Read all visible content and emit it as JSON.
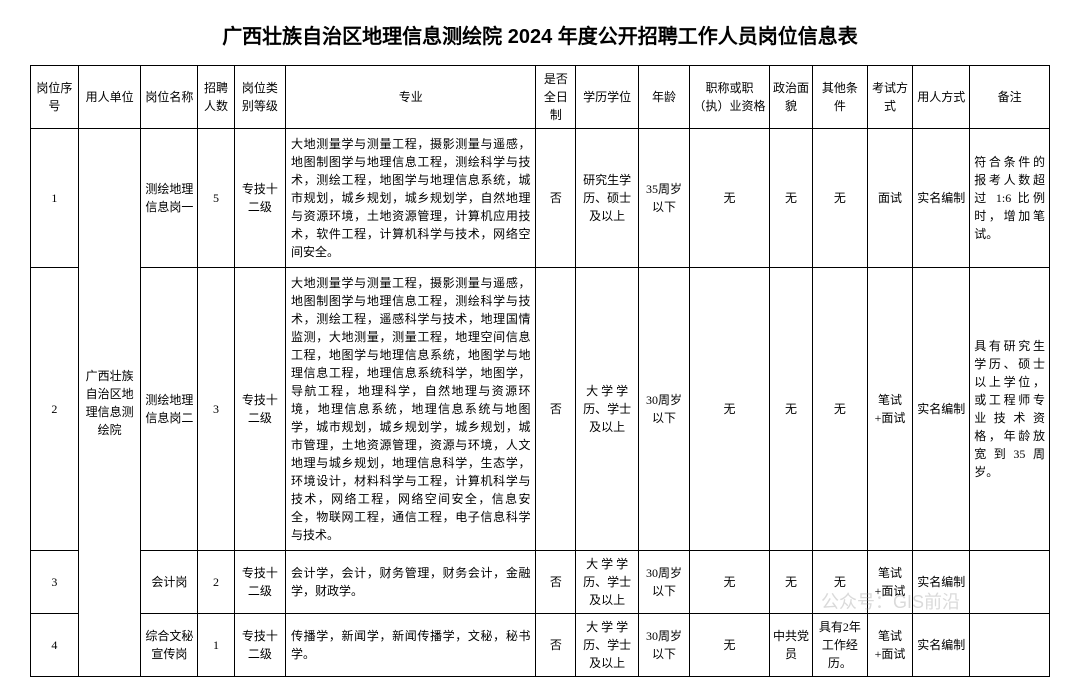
{
  "title": "广西壮族自治区地理信息测绘院 2024 年度公开招聘工作人员岗位信息表",
  "headers": {
    "seq": "岗位序号",
    "unit": "用人单位",
    "position": "岗位名称",
    "count": "招聘人数",
    "level": "岗位类别等级",
    "major": "专业",
    "fulltime": "是否全日制",
    "education": "学历学位",
    "age": "年龄",
    "cert": "职称或职（执）业资格",
    "politics": "政治面貌",
    "other": "其他条件",
    "exam": "考试方式",
    "employ": "用人方式",
    "note": "备注"
  },
  "unit": "广西壮族自治区地理信息测绘院",
  "rows": [
    {
      "seq": "1",
      "position": "测绘地理信息岗一",
      "count": "5",
      "level": "专技十二级",
      "major": "大地测量学与测量工程，摄影测量与遥感，地图制图学与地理信息工程，测绘科学与技术，测绘工程，地图学与地理信息系统，城市规划，城乡规划，城乡规划学，自然地理与资源环境，土地资源管理，计算机应用技术，软件工程，计算机科学与技术，网络空间安全。",
      "fulltime": "否",
      "education": "研究生学历、硕士及以上",
      "age": "35周岁以下",
      "cert": "无",
      "politics": "无",
      "other": "无",
      "exam": "面试",
      "employ": "实名编制",
      "note": "符合条件的报考人数超过 1:6 比例时，增加笔试。"
    },
    {
      "seq": "2",
      "position": "测绘地理信息岗二",
      "count": "3",
      "level": "专技十二级",
      "major": "大地测量学与测量工程，摄影测量与遥感，地图制图学与地理信息工程，测绘科学与技术，测绘工程，遥感科学与技术，地理国情监测，大地测量，测量工程，地理空间信息工程，地图学与地理信息系统，地图学与地理信息工程，地理信息系统科学，地图学，导航工程，地理科学，自然地理与资源环境，地理信息系统，地理信息系统与地图学，城市规划，城乡规划学，城乡规划，城市管理，土地资源管理，资源与环境，人文地理与城乡规划，地理信息科学，生态学，环境设计，材料科学与工程，计算机科学与技术，网络工程，网络空间安全，信息安全，物联网工程，通信工程，电子信息科学与技术。",
      "fulltime": "否",
      "education": "大 学 学历、学士及以上",
      "age": "30周岁以下",
      "cert": "无",
      "politics": "无",
      "other": "无",
      "exam": "笔试+面试",
      "employ": "实名编制",
      "note": "具有研究生学历、硕士以上学位，或工程师专业技术资格，年龄放宽到35周岁。"
    },
    {
      "seq": "3",
      "position": "会计岗",
      "count": "2",
      "level": "专技十二级",
      "major": "会计学，会计，财务管理，财务会计，金融学，财政学。",
      "fulltime": "否",
      "education": "大 学 学历、学士及以上",
      "age": "30周岁以下",
      "cert": "无",
      "politics": "无",
      "other": "无",
      "exam": "笔试+面试",
      "employ": "实名编制",
      "note": ""
    },
    {
      "seq": "4",
      "position": "综合文秘宣传岗",
      "count": "1",
      "level": "专技十二级",
      "major": "传播学，新闻学，新闻传播学，文秘，秘书学。",
      "fulltime": "否",
      "education": "大 学 学历、学士及以上",
      "age": "30周岁以下",
      "cert": "无",
      "politics": "中共党员",
      "other": "具有2年工作经历。",
      "exam": "笔试+面试",
      "employ": "实名编制",
      "note": ""
    }
  ],
  "watermark": "公众号：GIS前沿"
}
